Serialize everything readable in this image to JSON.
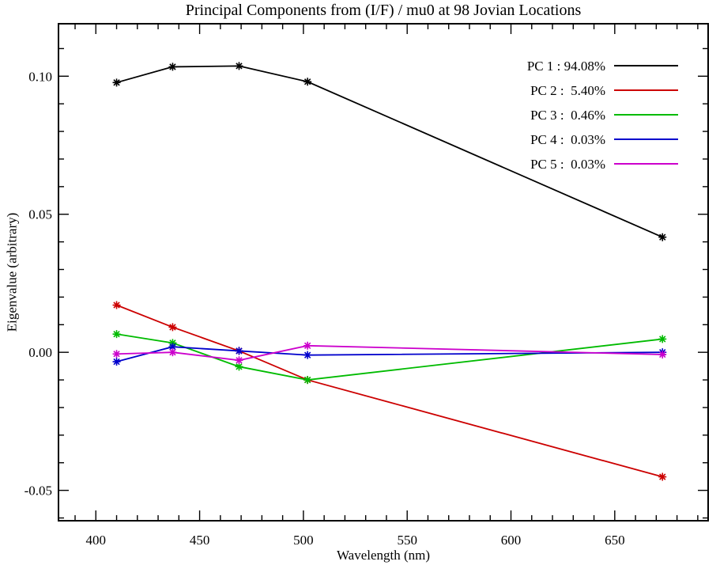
{
  "chart_data": {
    "type": "line",
    "title": "Principal Components from (I/F) / mu0 at 98 Jovian Locations",
    "xlabel": "Wavelength (nm)",
    "ylabel": "Eigenvalue (arbitrary)",
    "x": [
      410,
      437,
      469,
      502,
      673
    ],
    "series": [
      {
        "name": "PC 1 : 94.08%",
        "color": "#000000",
        "values": [
          0.0977,
          0.1034,
          0.1037,
          0.098,
          0.0417
        ]
      },
      {
        "name": "PC 2 :  5.40%",
        "color": "#cc0000",
        "values": [
          0.0171,
          0.0091,
          0.0005,
          -0.01,
          -0.0451
        ]
      },
      {
        "name": "PC 3 :  0.46%",
        "color": "#00bb00",
        "values": [
          0.0066,
          0.0034,
          -0.0052,
          -0.01,
          0.0048
        ]
      },
      {
        "name": "PC 4 :  0.03%",
        "color": "#0000cc",
        "values": [
          -0.0034,
          0.002,
          0.0005,
          -0.001,
          0.0
        ]
      },
      {
        "name": "PC 5 :  0.03%",
        "color": "#cc00cc",
        "values": [
          -0.0006,
          0.0,
          -0.0029,
          0.0024,
          -0.0008
        ]
      }
    ],
    "xlim": [
      382,
      695
    ],
    "ylim": [
      -0.061,
      0.119
    ],
    "x_major_ticks": [
      400,
      450,
      500,
      550,
      600,
      650
    ],
    "x_tick_labels": [
      "400",
      "450",
      "500",
      "550",
      "600",
      "650"
    ],
    "x_minor_step": 10,
    "y_major_ticks": [
      -0.05,
      0.0,
      0.05,
      0.1
    ],
    "y_tick_labels": [
      "-0.05",
      "0.00",
      "0.05",
      "0.10"
    ],
    "y_minor_step": 0.01,
    "marker": "asterisk",
    "grid": false,
    "legend_position": "top-right",
    "axis_color": "#000000",
    "background": "#ffffff"
  }
}
